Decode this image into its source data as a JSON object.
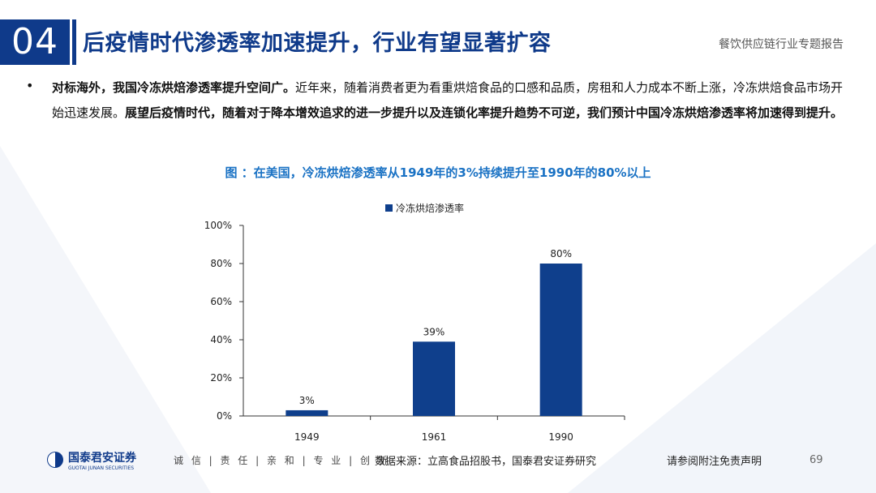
{
  "header": {
    "section_number": "04",
    "title": "后疫情时代渗透率加速提升，行业有望显著扩容",
    "report_name": "餐饮供应链行业专题报告"
  },
  "body": {
    "bullet": "•",
    "bold_lead": "对标海外，我国冷冻烘焙渗透率提升空间广。",
    "text_1": "近年来，随着消费者更为看重烘焙食品的口感和品质，房租和人力成本不断上涨，冷冻烘焙食品市场开始迅速发展。",
    "bold_tail": "展望后疫情时代，随着对于降本增效追求的进一步提升以及连锁化率提升趋势不可逆，我们预计中国冷冻烘焙渗透率将加速得到提升。"
  },
  "chart_caption": "图 ：在美国，冷冻烘焙渗透率从1949年的3%持续提升至1990年的80%以上",
  "chart_data": {
    "type": "bar",
    "categories": [
      "1949",
      "1961",
      "1990"
    ],
    "series": [
      {
        "name": "冷冻烘焙渗透率",
        "values": [
          3,
          39,
          80
        ]
      }
    ],
    "data_labels": [
      "3%",
      "39%",
      "80%"
    ],
    "y_ticks": [
      "0%",
      "20%",
      "40%",
      "60%",
      "80%",
      "100%"
    ],
    "ylim": [
      0,
      100
    ],
    "legend_position": "top-center",
    "bar_color": "#0f3f8c",
    "grid": false
  },
  "footer": {
    "logo_text": "国泰君安证券",
    "logo_subtext": "GUOTAI JUNAN SECURITIES",
    "values": "诚 信 | 责 任 | 亲 和 | 专 业 | 创 新",
    "source": "数据来源：立高食品招股书，国泰君安证券研究",
    "disclaimer": "请参阅附注免责声明",
    "page_number": "69"
  },
  "colors": {
    "brand": "#0f3a8a",
    "caption": "#1a72c4"
  }
}
